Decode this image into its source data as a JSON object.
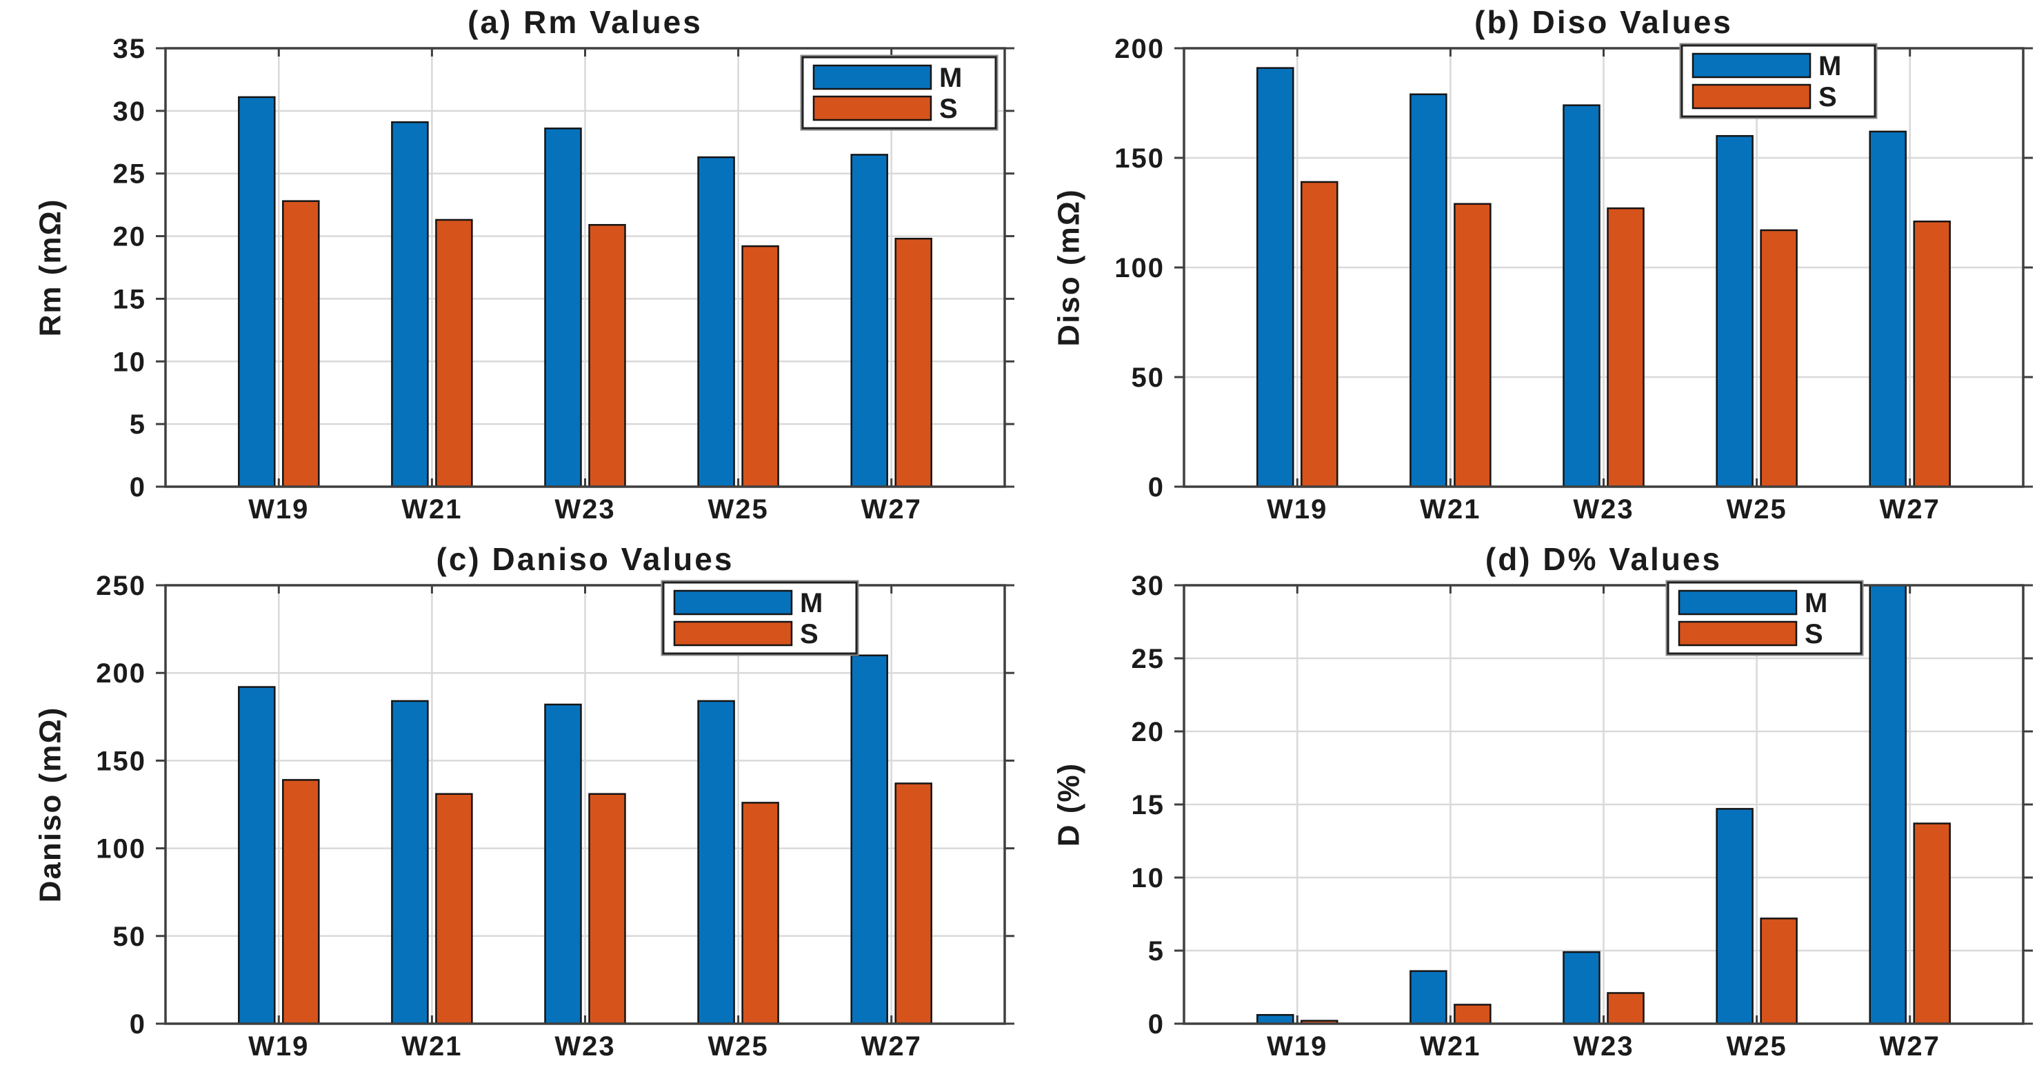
{
  "figure": {
    "background": "#ffffff",
    "grid_on": true,
    "legend_position": "top-right-inside"
  },
  "colors": {
    "m_series": "#0772BC",
    "s_series": "#D6531C",
    "grid": "#D9D9D9",
    "axis": "#3F3F3F",
    "text": "#1B1B1B",
    "bar_edge": "#141414",
    "legend_border": "#222222",
    "legend_outer": "#8C8C8C",
    "legend_bg": "#FFFFFF"
  },
  "legend": {
    "items": [
      {
        "label": "M",
        "color_key": "m_series"
      },
      {
        "label": "S",
        "color_key": "s_series"
      }
    ]
  },
  "chart_data": [
    {
      "type": "bar",
      "panel": "a",
      "title": "(a) Rm Values",
      "ylabel": "Rm (mΩ)",
      "xlabel": "",
      "categories": [
        "W19",
        "W21",
        "W23",
        "W25",
        "W27"
      ],
      "series": [
        {
          "name": "M",
          "values": [
            31.1,
            29.1,
            28.6,
            26.3,
            26.5
          ]
        },
        {
          "name": "S",
          "values": [
            22.8,
            21.3,
            20.9,
            19.2,
            19.8
          ]
        }
      ],
      "ylim": [
        0,
        35
      ],
      "yticks": [
        0,
        5,
        10,
        15,
        20,
        25,
        30,
        35
      ],
      "grid": true,
      "legend_labels": [
        "M",
        "S"
      ],
      "legend_inset_right": 13,
      "legend_inset_top": 83
    },
    {
      "type": "bar",
      "panel": "b",
      "title": "(b) Diso Values",
      "ylabel": "Diso (mΩ)",
      "xlabel": "",
      "categories": [
        "W19",
        "W21",
        "W23",
        "W25",
        "W27"
      ],
      "series": [
        {
          "name": "M",
          "values": [
            191,
            179,
            174,
            160,
            162
          ]
        },
        {
          "name": "S",
          "values": [
            139,
            129,
            127,
            117,
            121
          ]
        }
      ],
      "ylim": [
        0,
        200
      ],
      "yticks": [
        0,
        50,
        100,
        150,
        200
      ],
      "grid": true,
      "legend_labels": [
        "M",
        "S"
      ],
      "legend_inset_right": 215,
      "legend_inset_top": 66
    },
    {
      "type": "bar",
      "panel": "c",
      "title": "(c) Daniso Values",
      "ylabel": "Daniso (mΩ)",
      "xlabel": "",
      "categories": [
        "W19",
        "W21",
        "W23",
        "W25",
        "W27"
      ],
      "series": [
        {
          "name": "M",
          "values": [
            192,
            184,
            182,
            184,
            210
          ]
        },
        {
          "name": "S",
          "values": [
            139,
            131,
            131,
            126,
            137
          ]
        }
      ],
      "ylim": [
        0,
        250
      ],
      "yticks": [
        0,
        50,
        100,
        150,
        200,
        250
      ],
      "grid": true,
      "legend_labels": [
        "M",
        "S"
      ],
      "legend_inset_right": 215,
      "legend_inset_top": 66
    },
    {
      "type": "bar",
      "panel": "d",
      "title": "(d) D% Values",
      "ylabel": "D (%)",
      "xlabel": "",
      "categories": [
        "W19",
        "W21",
        "W23",
        "W25",
        "W27"
      ],
      "series": [
        {
          "name": "M",
          "values": [
            0.6,
            3.6,
            4.9,
            14.7,
            30
          ]
        },
        {
          "name": "S",
          "values": [
            0.2,
            1.3,
            2.1,
            7.2,
            13.7
          ]
        }
      ],
      "ylim": [
        0,
        30
      ],
      "yticks": [
        0,
        5,
        10,
        15,
        20,
        25,
        30
      ],
      "grid": true,
      "legend_labels": [
        "M",
        "S"
      ],
      "legend_inset_right": 235,
      "legend_inset_top": 66
    }
  ]
}
